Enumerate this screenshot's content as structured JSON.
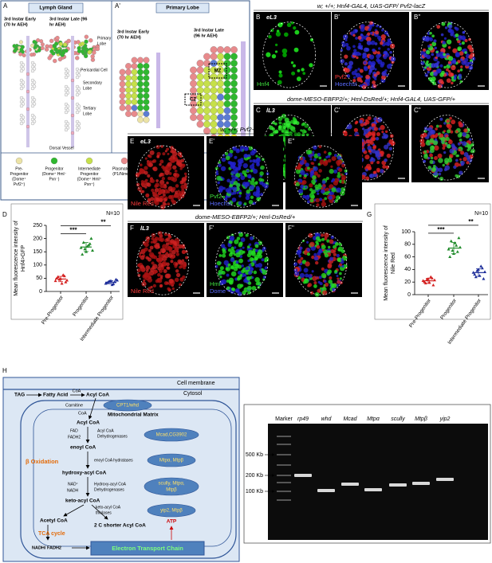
{
  "panel_a": {
    "label": "A",
    "title": "Lymph Gland",
    "early": [
      "3rd Instar Early",
      "(70 hr AEH)"
    ],
    "late": [
      "3rd Instar Late (96",
      "hr AEH)"
    ],
    "primary_lobe": [
      "Primary",
      "Lobe"
    ],
    "pericardial": "Pericardial Cell",
    "secondary": [
      "Secondary",
      "Lobe"
    ],
    "tertiary": [
      "Tertiary",
      "Lobe"
    ],
    "dorsal_vessel": "Dorsal Vessel"
  },
  "panel_a2": {
    "label": "A'",
    "title": "Primary Lobe",
    "early": [
      "3rd Instar Early",
      "(70 hr AEH)"
    ],
    "late": [
      "3rd Instar Late",
      "(96 hr AEH)"
    ],
    "mz": "MZ",
    "cz": "CZ"
  },
  "legend": [
    {
      "lines": [
        "Pre-",
        "Progenitor",
        "(Dome⁺",
        "Pvf2⁺)"
      ],
      "color": "#ece3a6"
    },
    {
      "lines": [
        "Progenitor",
        "(Dome⁺ Hml⁻",
        "Pxn⁻)"
      ],
      "color": "#2fb82f"
    },
    {
      "lines": [
        "Intermediate",
        "Progenitor",
        "(Dome⁺ Hml⁺",
        "Pxn⁺)"
      ],
      "color": "#c6e04a"
    },
    {
      "lines": [
        "Plasmatocyte",
        "(P1/Nimrod⁺)"
      ],
      "color": "#e88a8c"
    },
    {
      "lines": [
        "Crystal Cell",
        "(proPO⁺)"
      ],
      "color": "#5b7bd3"
    },
    {
      "lines": [
        "Niche Cell",
        "(Antp⁺)"
      ],
      "color": "#f1e534"
    },
    {
      "lines": [
        "Secondary and",
        "Tertiary lobe",
        "Cell",
        "(Uncharacterized)"
      ],
      "color": "#f4f4f4"
    }
  ],
  "rows": [
    {
      "genotype": "w; +/+; Hnf4-GAL4, UAS-GFP/ Pvf2-lacZ",
      "panels": [
        {
          "label": "B",
          "stage": "eL3",
          "channels": [
            {
              "name": "Hnf4",
              "color": "#3ee03e"
            }
          ]
        },
        {
          "label": "B'",
          "channels": [
            {
              "name": "Pvf2",
              "color": "#ff3b3b"
            },
            {
              "name": "Hoechst",
              "color": "#5a6bff"
            }
          ]
        },
        {
          "label": "B''",
          "channels": []
        }
      ]
    },
    {
      "genotype": "dome-MESO-EBFP2/+; Hml-DsRed/+; Hnf4-GAL4, UAS-GFP/+",
      "panels": [
        {
          "label": "C",
          "stage": "lL3",
          "channels": [
            {
              "name": "Hnf4",
              "color": "#3ee03e"
            }
          ]
        },
        {
          "label": "C'",
          "channels": [
            {
              "name": "Hml",
              "color": "#ff3b3b"
            },
            {
              "name": "Dome",
              "color": "#5a6bff"
            }
          ]
        },
        {
          "label": "C''",
          "channels": []
        }
      ]
    },
    {
      "genotype": "w; +/+; Pvf2-lacZ/+",
      "panels": [
        {
          "label": "E",
          "stage": "eL3",
          "channels": [
            {
              "name": "Nile Red",
              "color": "#ff3b3b"
            }
          ]
        },
        {
          "label": "E'",
          "channels": [
            {
              "name": "Pvf2",
              "color": "#3ee03e"
            },
            {
              "name": "Hoechst",
              "color": "#5a6bff"
            }
          ]
        },
        {
          "label": "E''",
          "channels": []
        }
      ]
    },
    {
      "genotype": "dome-MESO-EBFP2/+; Hml-DsRed/+",
      "panels": [
        {
          "label": "F",
          "stage": "lL3",
          "channels": [
            {
              "name": "Nile Red",
              "color": "#ff3b3b"
            }
          ]
        },
        {
          "label": "F'",
          "channels": [
            {
              "name": "Hml",
              "color": "#3ee03e"
            },
            {
              "name": "Dome",
              "color": "#5a6bff"
            }
          ]
        },
        {
          "label": "F''",
          "channels": []
        }
      ]
    }
  ],
  "chart_data": [
    {
      "type": "strip",
      "label": "D",
      "ylabel": [
        "Mean fluorescence intensity of",
        "Hnf4>GFP"
      ],
      "n": "N=10",
      "categories": [
        "Pre-Progenitor",
        "Progenitor",
        "Intermediate Progenitor"
      ],
      "ylim": [
        0,
        250
      ],
      "yticks": [
        0,
        50,
        100,
        150,
        200,
        250
      ],
      "significance": [
        "***",
        "**"
      ],
      "series": [
        {
          "color": "#d42020",
          "values": [
            40,
            55,
            48,
            62,
            35,
            50,
            45,
            30,
            58,
            42
          ],
          "mean": 47,
          "error": 10
        },
        {
          "color": "#1f8a2a",
          "values": [
            165,
            185,
            150,
            175,
            200,
            140,
            160,
            170,
            180,
            155
          ],
          "mean": 168,
          "error": 17
        },
        {
          "color": "#1f2f9a",
          "values": [
            30,
            35,
            40,
            28,
            45,
            32,
            38,
            25,
            36,
            42
          ],
          "mean": 35,
          "error": 6
        }
      ]
    },
    {
      "type": "strip",
      "label": "G",
      "ylabel": [
        "Mean fluorescence intensity of",
        "Nile Red"
      ],
      "n": "N=10",
      "categories": [
        "Pre-Progenitor",
        "Progenitor",
        "Intermediate Progenitor"
      ],
      "ylim": [
        0,
        100
      ],
      "yticks": [
        0,
        20,
        40,
        60,
        80,
        100
      ],
      "significance": [
        "***",
        "**"
      ],
      "series": [
        {
          "color": "#d42020",
          "values": [
            22,
            18,
            25,
            28,
            15,
            20,
            24,
            19,
            26,
            23
          ],
          "mean": 22,
          "error": 4
        },
        {
          "color": "#1f8a2a",
          "values": [
            72,
            85,
            65,
            78,
            90,
            60,
            70,
            82,
            68,
            75
          ],
          "mean": 74,
          "error": 9
        },
        {
          "color": "#1f2f9a",
          "values": [
            35,
            28,
            40,
            45,
            25,
            32,
            38,
            30,
            42,
            36
          ],
          "mean": 35,
          "error": 6
        }
      ]
    }
  ],
  "panel_h": {
    "label": "H",
    "membrane": "Cell membrane",
    "cytosol": "Cytosol",
    "tag": "TAG",
    "fatty_acid": "Fatty Acid",
    "coa_in": "CoA",
    "acyl_coa_cyt": "Acyl CoA",
    "carnitine": "Carnitine",
    "cpt1": "CPT1/whd",
    "coa_out": "CoA",
    "matrix": "Mitochondrial Matrix",
    "acyl_coa": "Acyl CoA",
    "fad": "FAD",
    "fadh2": "FADH2",
    "acd": [
      "Acyl CoA",
      "Dehydrogenases"
    ],
    "acd_genes": "Mcad,CG3902",
    "enoyl": "enoyl CoA",
    "hydratases": "enoyl CoA hydratases",
    "hydratase_genes": "Mtpα, Mtpβ",
    "beta_ox": "β Oxidation",
    "hydroxy": "hydroxy-acyl CoA",
    "nad": "NAD⁺",
    "nadh": "NADH",
    "had": [
      "Hydroxy-acyl CoA",
      "Dehydrogenases"
    ],
    "had_genes": [
      "scully, Mtpα,",
      "Mtpβ"
    ],
    "keto": "keto-acyl CoA",
    "thiolases": [
      "keto-acyl CoA",
      "thiolases"
    ],
    "thiolase_genes": "yip2, Mtpβ",
    "acetyl": "Acetyl CoA",
    "shorter": "2 C shorter Acyl CoA",
    "tca": "TCA cycle",
    "atp": "ATP",
    "nadh_fadh2": "NADH/ FADH2",
    "etc": "Electron Transport Chain"
  },
  "panel_i": {
    "label": "I",
    "marker": "Marker",
    "lanes": [
      "rp49",
      "whd",
      "Mcad",
      "Mtpα",
      "scully",
      "Mtpβ",
      "yip2"
    ],
    "ladder": [
      "500 Kb",
      "200 Kb",
      "100 Kb"
    ]
  }
}
